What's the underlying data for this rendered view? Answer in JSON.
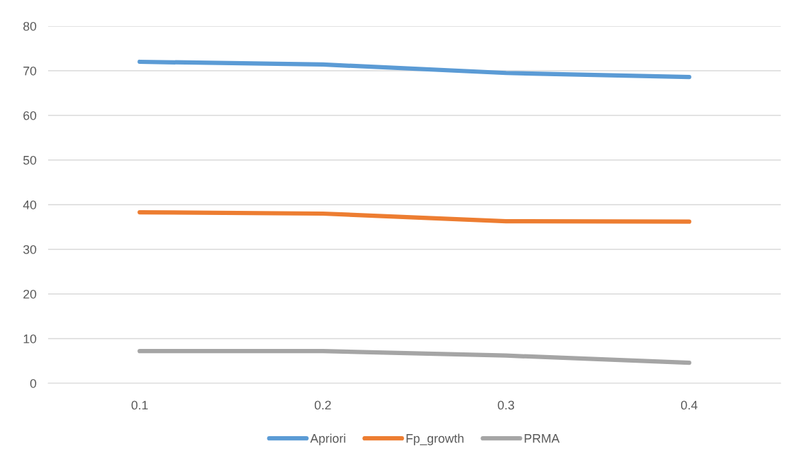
{
  "chart_data": {
    "type": "line",
    "categories": [
      "0.1",
      "0.2",
      "0.3",
      "0.4"
    ],
    "series": [
      {
        "name": "Apriori",
        "color": "#5b9bd5",
        "values": [
          72.0,
          71.4,
          69.5,
          68.6
        ]
      },
      {
        "name": "Fp_growth",
        "color": "#ed7d31",
        "values": [
          38.3,
          38.0,
          36.3,
          36.2
        ]
      },
      {
        "name": "PRMA",
        "color": "#a5a5a5",
        "values": [
          7.2,
          7.2,
          6.2,
          4.6
        ]
      }
    ],
    "ylim": [
      0,
      80
    ],
    "yticks": [
      0,
      10,
      20,
      30,
      40,
      50,
      60,
      70,
      80
    ],
    "grid": "y",
    "legend": "bottom",
    "marker": "none",
    "line_style": "solid"
  }
}
